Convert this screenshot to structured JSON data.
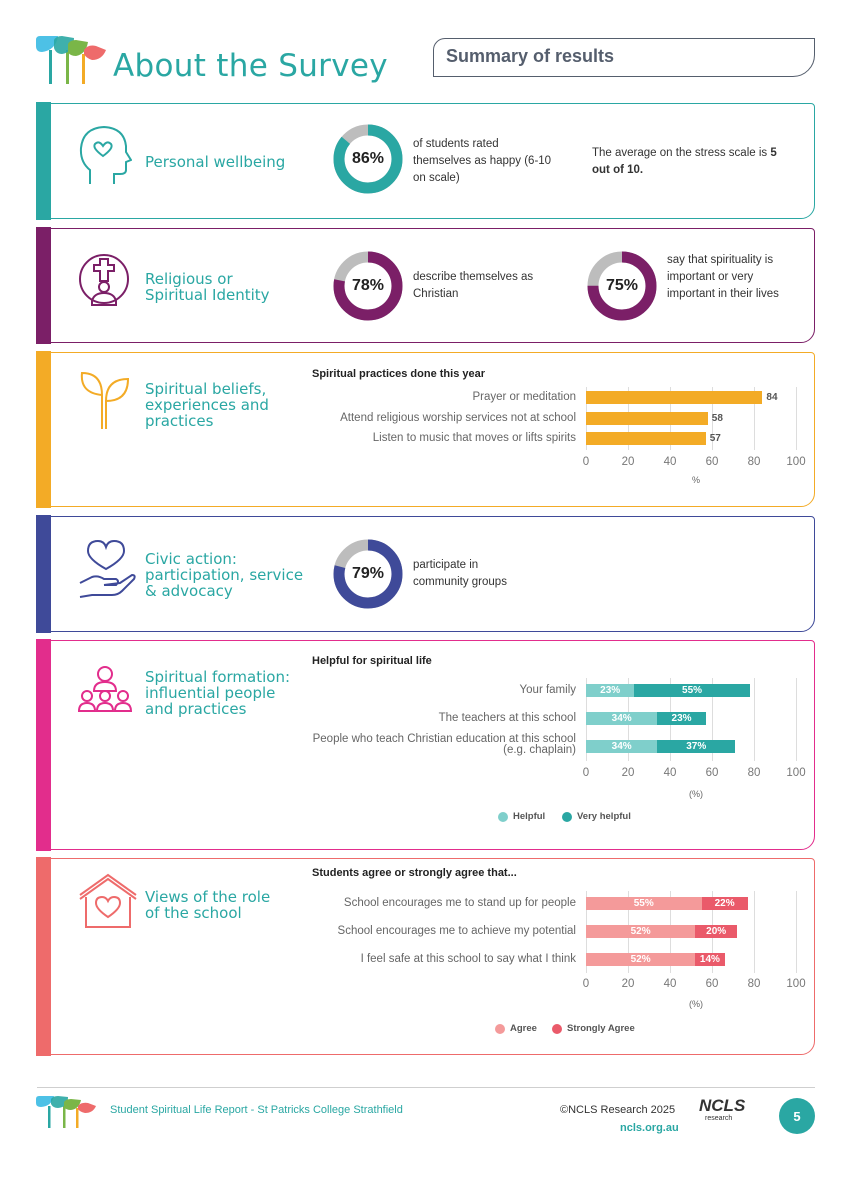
{
  "header": {
    "title": "About the Survey",
    "summary_label": "Summary of results"
  },
  "colors": {
    "teal": "#2aa7a3",
    "purple": "#7b1f67",
    "amber": "#f3ab26",
    "navy": "#3f4a99",
    "magenta": "#e22d8c",
    "coral": "#ee6b6b",
    "grey": "#bdbdbd"
  },
  "sections": {
    "wellbeing": {
      "title": "Personal wellbeing",
      "icon": "head-heart-icon",
      "stat1": {
        "value": "86%",
        "percent": 86,
        "text": "of students rated themselves as happy (6-10 on scale)"
      },
      "stat2": {
        "text_pre": "The average on the stress scale is ",
        "text_bold": "5 out of 10."
      }
    },
    "identity": {
      "title": "Religious or Spiritual Identity",
      "icon": "cross-person-icon",
      "stat1": {
        "value": "78%",
        "percent": 78,
        "text": "describe themselves as Christian"
      },
      "stat2": {
        "value": "75%",
        "percent": 75,
        "text": "say that spirituality is important or very important in their lives"
      }
    },
    "beliefs": {
      "title": "Spiritual beliefs, experiences and practices",
      "icon": "sprout-icon",
      "chart_title": "Spiritual practices done this year",
      "x_unit": "%"
    },
    "civic": {
      "title": "Civic action: participation, service & advocacy",
      "icon": "heart-hand-icon",
      "stat1": {
        "value": "79%",
        "percent": 79,
        "text": "participate in community groups"
      }
    },
    "formation": {
      "title": "Spiritual formation: influential people and practices",
      "icon": "people-group-icon",
      "chart_title": "Helpful for spiritual life",
      "x_unit": "(%)",
      "legend": [
        "Helpful",
        "Very helpful"
      ]
    },
    "school": {
      "title": "Views of the role of the school",
      "icon": "house-heart-icon",
      "chart_title": "Students agree or strongly agree that...",
      "x_unit": "(%)",
      "legend": [
        "Agree",
        "Strongly Agree"
      ]
    }
  },
  "chart_data": [
    {
      "type": "bar",
      "title": "Spiritual practices done this year",
      "categories": [
        "Prayer or meditation",
        "Attend religious worship services not at school",
        "Listen to music that moves or lifts spirits"
      ],
      "values": [
        84,
        58,
        57
      ],
      "xlabel": "%",
      "xlim": [
        0,
        100
      ],
      "ticks": [
        "0",
        "20",
        "40",
        "60",
        "80",
        "100"
      ]
    },
    {
      "type": "bar",
      "title": "Helpful for spiritual life",
      "categories": [
        "Your family",
        "The teachers at this school",
        "People who teach Christian education at this school (e.g. chaplain)"
      ],
      "series": [
        {
          "name": "Helpful",
          "values": [
            23,
            34,
            34
          ],
          "labels": [
            "23%",
            "34%",
            "34%"
          ]
        },
        {
          "name": "Very helpful",
          "values": [
            55,
            23,
            37
          ],
          "labels": [
            "55%",
            "23%",
            "37%"
          ]
        }
      ],
      "xlabel": "(%)",
      "xlim": [
        0,
        100
      ],
      "ticks": [
        "0",
        "20",
        "40",
        "60",
        "80",
        "100"
      ]
    },
    {
      "type": "bar",
      "title": "Students agree or strongly agree that...",
      "categories": [
        "School encourages me to stand up for people",
        "School encourages me to achieve my potential",
        "I feel safe at this school to say what I think"
      ],
      "series": [
        {
          "name": "Agree",
          "values": [
            55,
            52,
            52
          ],
          "labels": [
            "55%",
            "52%",
            "52%"
          ]
        },
        {
          "name": "Strongly Agree",
          "values": [
            22,
            20,
            14
          ],
          "labels": [
            "22%",
            "20%",
            "14%"
          ]
        }
      ],
      "xlabel": "(%)",
      "xlim": [
        0,
        100
      ],
      "ticks": [
        "0",
        "20",
        "40",
        "60",
        "80",
        "100"
      ]
    }
  ],
  "footer": {
    "report": "Student Spiritual Life Report - St Patricks College Strathfield",
    "copyright": "©NCLS Research 2025",
    "url": "ncls.org.au",
    "page": "5",
    "logo_text": "NCLS",
    "logo_sub": "research"
  }
}
